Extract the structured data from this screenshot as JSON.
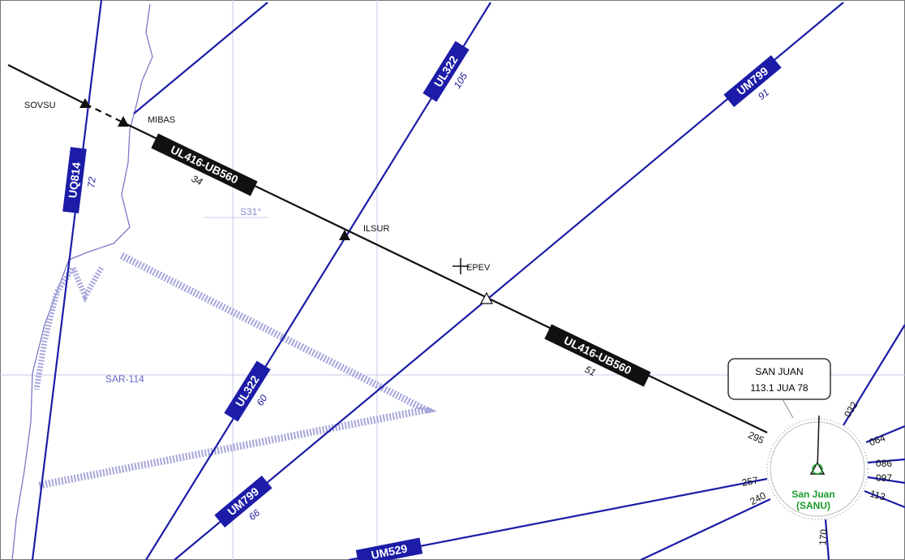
{
  "waypoints": [
    {
      "name": "SOVSU"
    },
    {
      "name": "MIBAS"
    },
    {
      "name": "ILSUR"
    },
    {
      "name": "EPEV"
    }
  ],
  "airways": [
    {
      "name": "UL416-UB560",
      "distance": "34"
    },
    {
      "name": "UL416-UB560",
      "distance": "51"
    },
    {
      "name": "UQ814",
      "distance": "72"
    },
    {
      "name": "UL322",
      "distance": "105"
    },
    {
      "name": "UL322",
      "distance": "60"
    },
    {
      "name": "UM799",
      "distance": "91"
    },
    {
      "name": "UM799",
      "distance": "66"
    },
    {
      "name": "UM529"
    }
  ],
  "grid_label": "S31°",
  "area_label": "SAR-114",
  "navaid": {
    "name": "SAN JUAN",
    "frequency": "113.1 JUA 78",
    "radials": [
      "032",
      "064",
      "086",
      "097",
      "113",
      "170",
      "240",
      "257",
      "295"
    ],
    "airport": "San Juan",
    "airport_code": "(SANU)"
  }
}
